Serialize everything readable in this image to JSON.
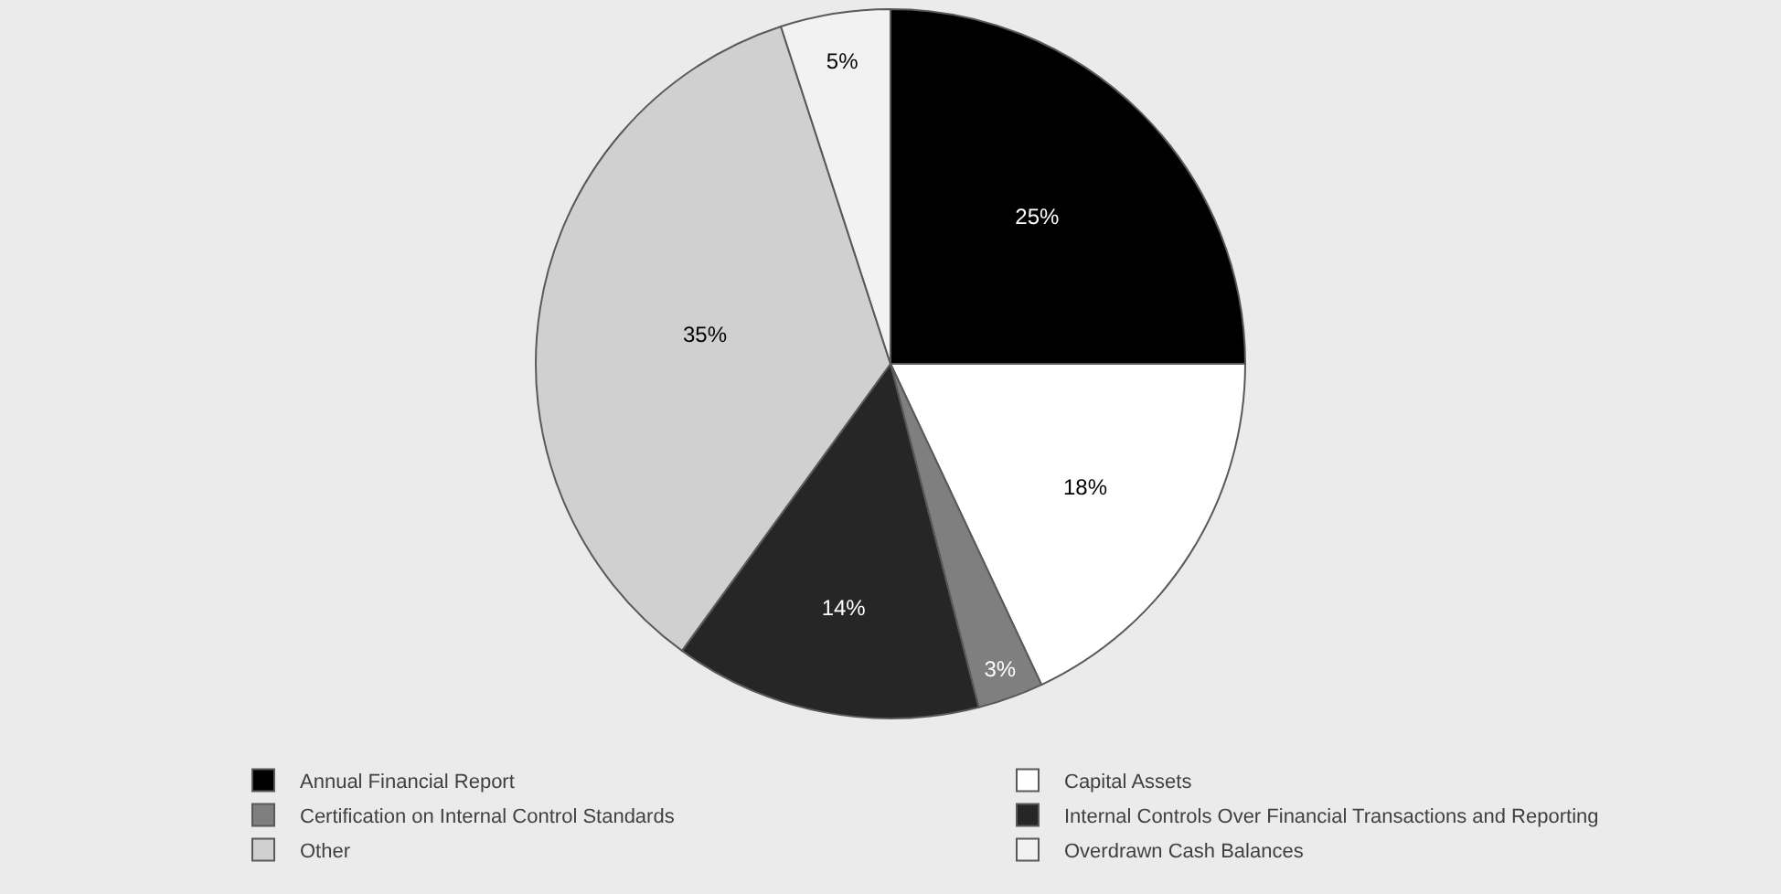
{
  "chart_data": {
    "type": "pie",
    "categories": [
      "Annual Financial Report",
      "Capital Assets",
      "Certification on Internal Control Standards",
      "Internal Controls Over Financial Transactions and Reporting",
      "Other",
      "Overdrawn Cash Balances"
    ],
    "values": [
      25,
      18,
      3,
      14,
      35,
      5
    ],
    "value_labels": [
      "25%",
      "18%",
      "3%",
      "14%",
      "35%",
      "5%"
    ],
    "colors": [
      "#000000",
      "#ffffff",
      "#7f7f7f",
      "#262626",
      "#d0d0d0",
      "#f2f2f2"
    ],
    "legend": "bottom"
  }
}
